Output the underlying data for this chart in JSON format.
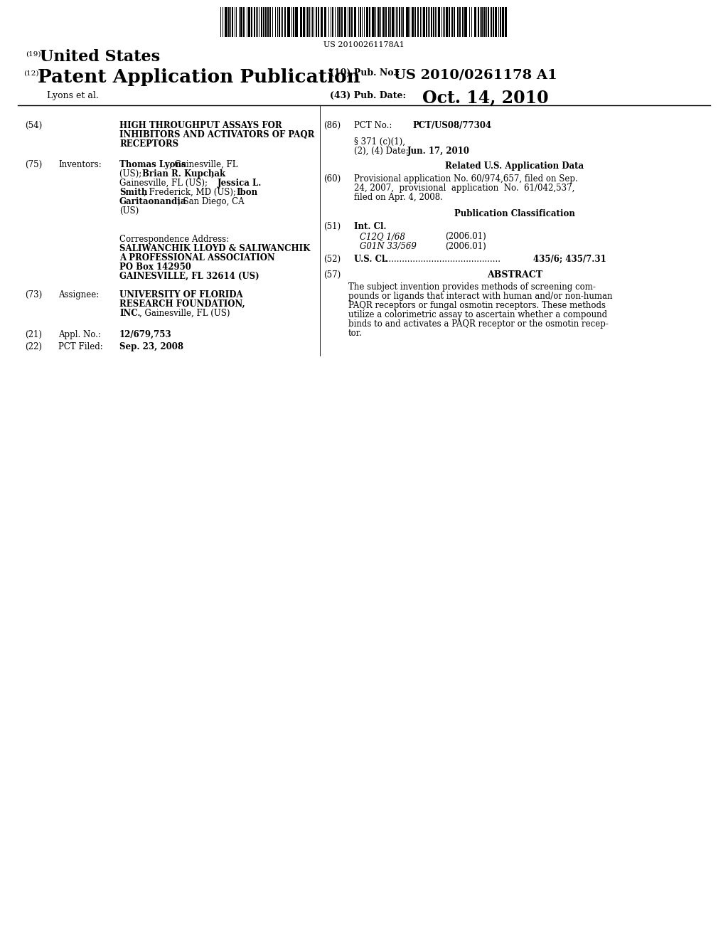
{
  "background_color": "#ffffff",
  "barcode_number": "US 20100261178A1",
  "title_19_sup": "(19)",
  "title_19_text": "United States",
  "title_12_sup": "(12)",
  "title_12_text": "Patent Application Publication",
  "pub_no_label": "(10) Pub. No.:",
  "pub_no": "US 2010/0261178 A1",
  "authors": "Lyons et al.",
  "pub_date_label": "(43) Pub. Date:",
  "pub_date": "Oct. 14, 2010",
  "field_54_label": "(54)",
  "field_54_line1": "HIGH THROUGHPUT ASSAYS FOR",
  "field_54_line2": "INHIBITORS AND ACTIVATORS OF PAQR",
  "field_54_line3": "RECEPTORS",
  "field_75_label": "(75)",
  "field_75_name": "Inventors:",
  "inv_line1_bold": "Thomas Lyons",
  "inv_line1_norm": ", Gainesville, FL",
  "inv_line2_bold": "",
  "inv_line2_norm": "(US); ",
  "inv_line2b_bold": "Brian R. Kupchak",
  "inv_line2b_norm": ",",
  "inv_line3_norm": "Gainesville, FL (US); ",
  "inv_line3b_bold": "Jessica L.",
  "inv_line4_bold": "Smith",
  "inv_line4_norm": ", Frederick, MD (US); ",
  "inv_line4b_bold": "Ibon",
  "inv_line5_bold": "Garitaonandia",
  "inv_line5_norm": ", San Diego, CA",
  "inv_line6_norm": "(US)",
  "corr_label": "Correspondence Address:",
  "corr_line1": "SALIWANCHIK LLOYD & SALIWANCHIK",
  "corr_line2": "A PROFESSIONAL ASSOCIATION",
  "corr_line3": "PO Box 142950",
  "corr_line4": "GAINESVILLE, FL 32614 (US)",
  "field_73_label": "(73)",
  "field_73_name": "Assignee:",
  "asgn_line1": "UNIVERSITY OF FLORIDA",
  "asgn_line2": "RESEARCH FOUNDATION,",
  "asgn_line3_bold": "INC.",
  "asgn_line3_norm": ", Gainesville, FL (US)",
  "field_21_label": "(21)",
  "field_21_name": "Appl. No.:",
  "field_21_val": "12/679,753",
  "field_22_label": "(22)",
  "field_22_name": "PCT Filed:",
  "field_22_val": "Sep. 23, 2008",
  "field_86_label": "(86)",
  "field_86_name": "PCT No.:",
  "field_86_val": "PCT/US08/77304",
  "sec371_line1": "§ 371 (c)(1),",
  "sec371_line2": "(2), (4) Date:",
  "sec371_date": "Jun. 17, 2010",
  "related_title": "Related U.S. Application Data",
  "field_60_label": "(60)",
  "field_60_line1": "Provisional application No. 60/974,657, filed on Sep.",
  "field_60_line2": "24, 2007,  provisional  application  No.  61/042,537,",
  "field_60_line3": "filed on Apr. 4, 2008.",
  "pub_class_title": "Publication Classification",
  "field_51_label": "(51)",
  "field_51_name": "Int. Cl.",
  "field_51_c12q": "C12Q 1/68",
  "field_51_c12q_date": "(2006.01)",
  "field_51_g01n": "G01N 33/569",
  "field_51_g01n_date": "(2006.01)",
  "field_52_label": "(52)",
  "field_52_name": "U.S. Cl.",
  "field_52_dots": "............................................",
  "field_52_val": "435/6; 435/7.31",
  "field_57_label": "(57)",
  "abstract_title": "ABSTRACT",
  "abs_line1": "The subject invention provides methods of screening com-",
  "abs_line2": "pounds or ligands that interact with human and/or non-human",
  "abs_line3": "PAQR receptors or fungal osmotin receptors. These methods",
  "abs_line4": "utilize a colorimetric assay to ascertain whether a compound",
  "abs_line5": "binds to and activates a PAQR receptor or the osmotin recep-",
  "abs_line6": "tor."
}
